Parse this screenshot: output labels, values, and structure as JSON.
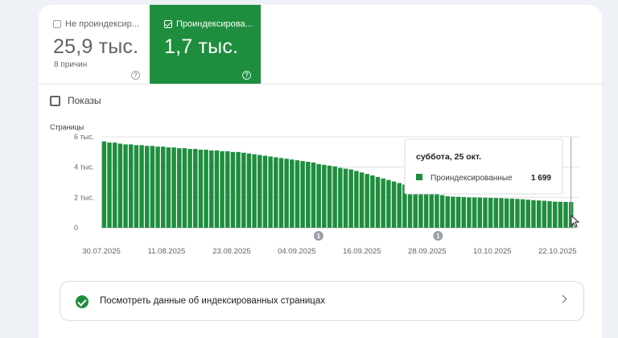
{
  "tiles": {
    "not_indexed": {
      "label": "Не проиндексир...",
      "value": "25,9 тыс.",
      "sub": "8 причин",
      "checked": false
    },
    "indexed": {
      "label": "Проиндексирова...",
      "value": "1,7 тыс.",
      "checked": true
    }
  },
  "help_glyph": "?",
  "impressions_label": "Показы",
  "tooltip": {
    "date": "суббота, 25 окт.",
    "series": "Проиндексированные",
    "value": "1 699"
  },
  "markers": [
    {
      "label": "1",
      "date": "2025-09-08"
    },
    {
      "label": "1",
      "date": "2025-09-30"
    }
  ],
  "link": {
    "text": "Посмотреть данные об индексированных страницах"
  },
  "colors": {
    "accent": "#1e8e3e",
    "bar": "#1e8e3e",
    "grid": "#e0e0e0"
  },
  "chart_data": {
    "type": "bar",
    "ylabel": "Страницы",
    "ylim": [
      0,
      6000
    ],
    "yticks": [
      {
        "v": 0,
        "label": "0"
      },
      {
        "v": 2000,
        "label": "2 тыс."
      },
      {
        "v": 4000,
        "label": "4 тыс."
      },
      {
        "v": 6000,
        "label": "6 тыс."
      }
    ],
    "xticks": [
      "30.07.2025",
      "11.08.2025",
      "23.08.2025",
      "04.09.2025",
      "16.09.2025",
      "28.09.2025",
      "10.10.2025",
      "22.10.2025"
    ],
    "x_start": "2025-07-30",
    "x_end": "2025-10-25",
    "series": [
      {
        "name": "Проиндексированные"
      }
    ],
    "values": [
      5700,
      5620,
      5620,
      5550,
      5500,
      5500,
      5450,
      5450,
      5400,
      5400,
      5350,
      5350,
      5300,
      5300,
      5250,
      5250,
      5200,
      5200,
      5150,
      5150,
      5100,
      5100,
      5050,
      5050,
      5000,
      5000,
      4950,
      4900,
      4850,
      4800,
      4750,
      4700,
      4650,
      4600,
      4550,
      4500,
      4450,
      4400,
      4350,
      4300,
      4200,
      4150,
      4100,
      4050,
      3950,
      3900,
      3850,
      3750,
      3650,
      3550,
      3450,
      3350,
      3250,
      3150,
      3050,
      2950,
      2850,
      2750,
      2650,
      2550,
      2450,
      2350,
      2250,
      2150,
      2080,
      2050,
      2040,
      2020,
      2000,
      2000,
      1990,
      1980,
      1970,
      1960,
      1950,
      1930,
      1920,
      1900,
      1880,
      1850,
      1820,
      1800,
      1780,
      1750,
      1720,
      1710,
      1700,
      1699
    ]
  }
}
